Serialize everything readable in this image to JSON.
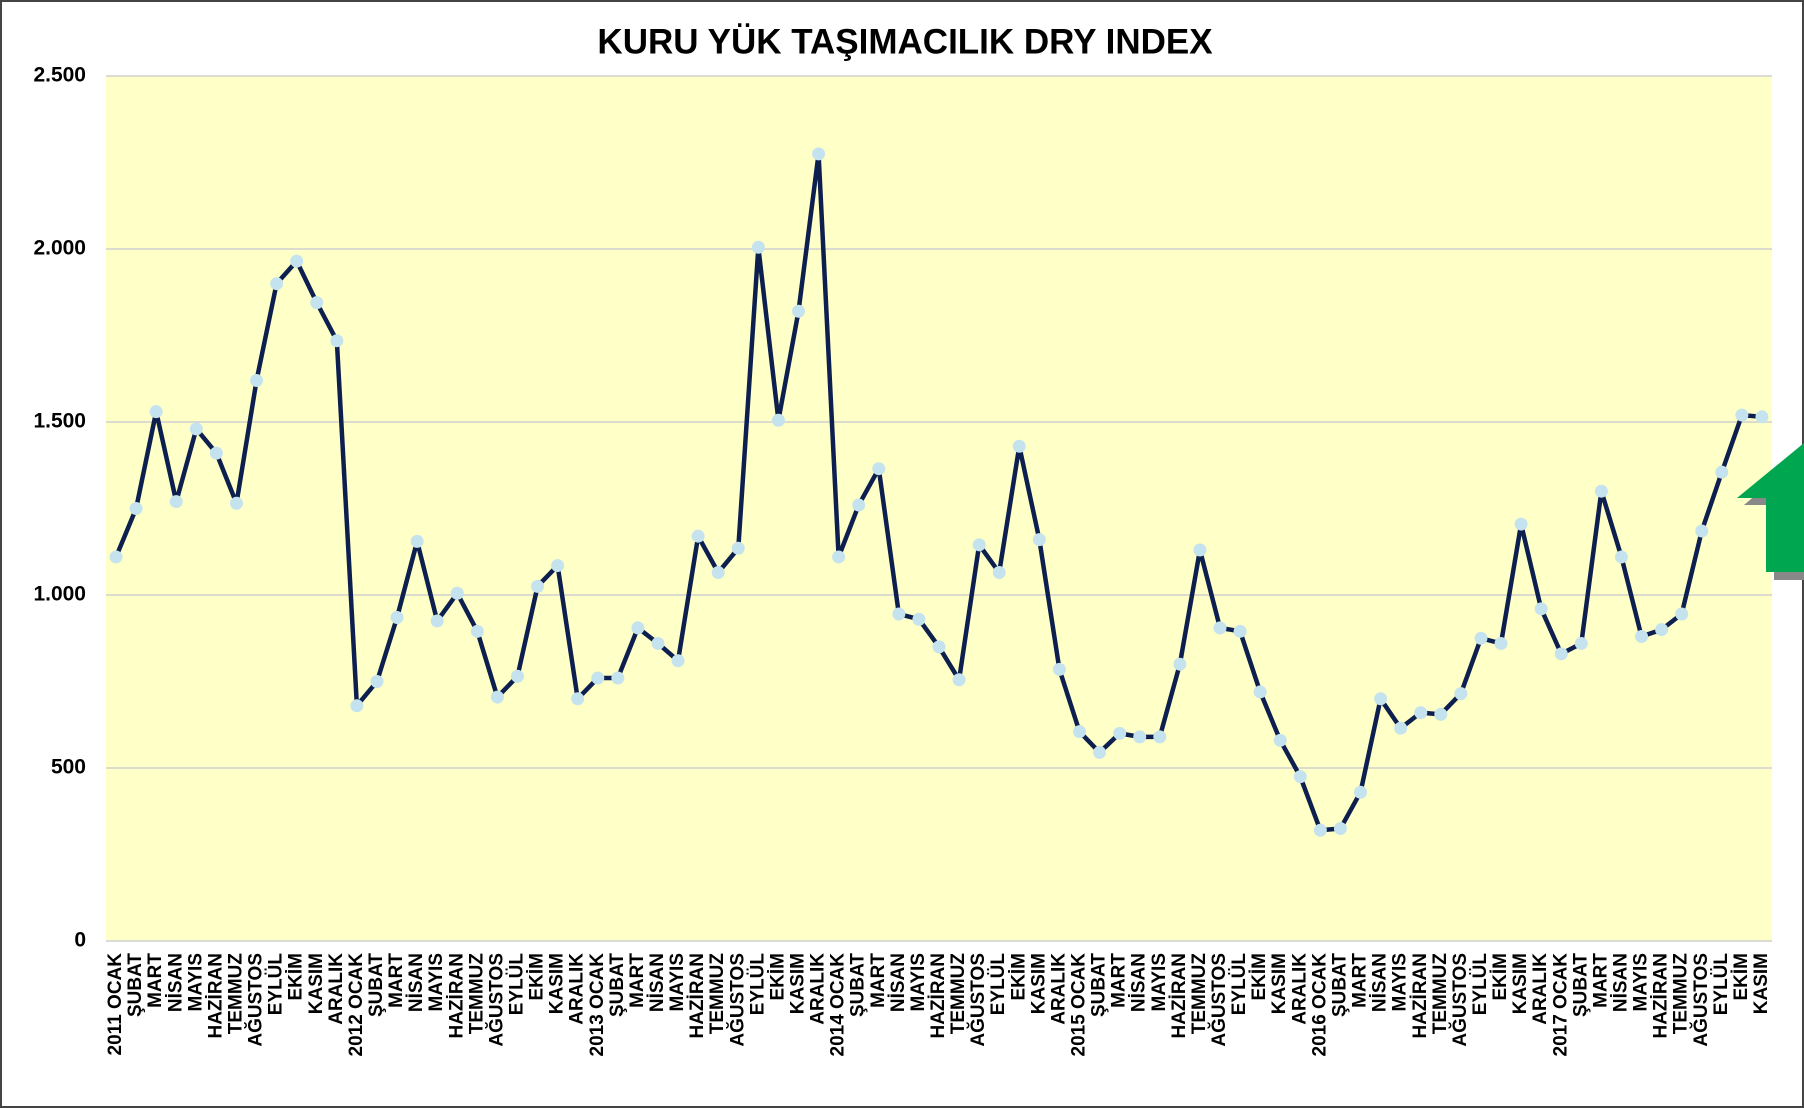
{
  "chart_data": {
    "type": "line",
    "title": "KURU YÜK TAŞIMACILIK DRY INDEX",
    "categories": [
      "2011 OCAK",
      "ŞUBAT",
      "MART",
      "NİSAN",
      "MAYIS",
      "HAZİRAN",
      "TEMMUZ",
      "AĞUSTOS",
      "EYLÜL",
      "EKİM",
      "KASIM",
      "ARALIK",
      "2012 OCAK",
      "ŞUBAT",
      "MART",
      "NİSAN",
      "MAYIS",
      "HAZİRAN",
      "TEMMUZ",
      "AĞUSTOS",
      "EYLÜL",
      "EKİM",
      "KASIM",
      "ARALIK",
      "2013 OCAK",
      "ŞUBAT",
      "MART",
      "NİSAN",
      "MAYIS",
      "HAZİRAN",
      "TEMMUZ",
      "AĞUSTOS",
      "EYLÜL",
      "EKİM",
      "KASIM",
      "ARALIK",
      "2014 OCAK",
      "ŞUBAT",
      "MART",
      "NİSAN",
      "MAYIS",
      "HAZİRAN",
      "TEMMUZ",
      "AĞUSTOS",
      "EYLÜL",
      "EKİM",
      "KASIM",
      "ARALIK",
      "2015 OCAK",
      "ŞUBAT",
      "MART",
      "NİSAN",
      "MAYIS",
      "HAZİRAN",
      "TEMMUZ",
      "AĞUSTOS",
      "EYLÜL",
      "EKİM",
      "KASIM",
      "ARALIK",
      "2016 OCAK",
      "ŞUBAT",
      "MART",
      "NİSAN",
      "MAYIS",
      "HAZİRAN",
      "TEMMUZ",
      "AĞUSTOS",
      "EYLÜL",
      "EKİM",
      "KASIM",
      "ARALIK",
      "2017 OCAK",
      "ŞUBAT",
      "MART",
      "NİSAN",
      "MAYIS",
      "HAZİRAN",
      "TEMMUZ",
      "AĞUSTOS",
      "EYLÜL",
      "EKİM",
      "KASIM"
    ],
    "values": [
      1110,
      1250,
      1530,
      1270,
      1480,
      1410,
      1265,
      1620,
      1900,
      1965,
      1845,
      1735,
      680,
      750,
      935,
      1155,
      925,
      1005,
      895,
      705,
      765,
      1025,
      1085,
      700,
      760,
      760,
      905,
      860,
      810,
      1170,
      1065,
      1135,
      2005,
      1505,
      1820,
      2275,
      1110,
      1260,
      1365,
      945,
      930,
      850,
      755,
      1145,
      1065,
      1430,
      1160,
      785,
      605,
      545,
      600,
      590,
      590,
      800,
      1130,
      905,
      895,
      720,
      580,
      475,
      320,
      325,
      430,
      700,
      615,
      660,
      655,
      715,
      875,
      860,
      1205,
      960,
      830,
      860,
      1300,
      1110,
      880,
      900,
      945,
      1185,
      1355,
      1520,
      1515
    ],
    "color": "#0d1f4f",
    "marker_color": "#c5e3ee",
    "ylim": [
      0,
      2500
    ],
    "yticks": [
      0,
      500,
      {
        "value": 1000,
        "label": "1.000"
      },
      {
        "value": 1500,
        "label": "1.500"
      },
      {
        "value": 2000,
        "label": "2.000"
      },
      {
        "value": 2500,
        "label": "2.500"
      }
    ],
    "grid": true
  }
}
